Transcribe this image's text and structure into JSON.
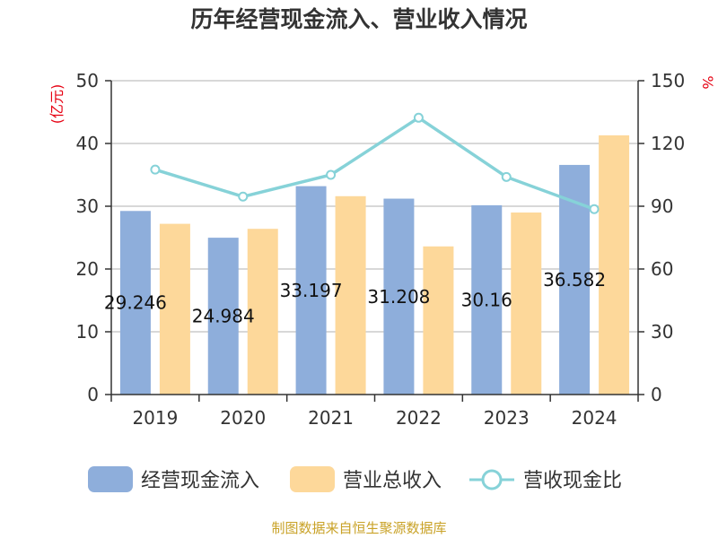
{
  "chart_data": {
    "type": "bar",
    "title": "历年经营现金流入、营业收入情况",
    "categories": [
      "2019",
      "2020",
      "2021",
      "2022",
      "2023",
      "2024"
    ],
    "left_unit": "(亿元)",
    "right_unit": "%",
    "left_ylim": [
      0,
      50
    ],
    "left_ticks": [
      "0",
      "10",
      "20",
      "30",
      "40",
      "50"
    ],
    "right_ylim": [
      0,
      150
    ],
    "right_ticks": [
      "0",
      "30",
      "60",
      "90",
      "120",
      "150"
    ],
    "grid": true,
    "legend_position": "bottom",
    "series": [
      {
        "name": "经营现金流入",
        "type": "bar",
        "axis": "left",
        "color": "#8eaedb",
        "values": [
          29.246,
          24.984,
          33.197,
          31.208,
          30.16,
          36.582
        ],
        "labels": [
          "29.246",
          "24.984",
          "33.197",
          "31.208",
          "30.16",
          "36.582"
        ]
      },
      {
        "name": "营业总收入",
        "type": "bar",
        "axis": "left",
        "color": "#fdd89a",
        "values": [
          27.2,
          26.4,
          31.6,
          23.6,
          29.0,
          41.3
        ]
      },
      {
        "name": "营收现金比",
        "type": "line",
        "axis": "right",
        "color": "#86d2d8",
        "values": [
          107.5,
          94.6,
          105.0,
          132.3,
          104.0,
          88.6
        ]
      }
    ]
  },
  "source": "制图数据来自恒生聚源数据库"
}
